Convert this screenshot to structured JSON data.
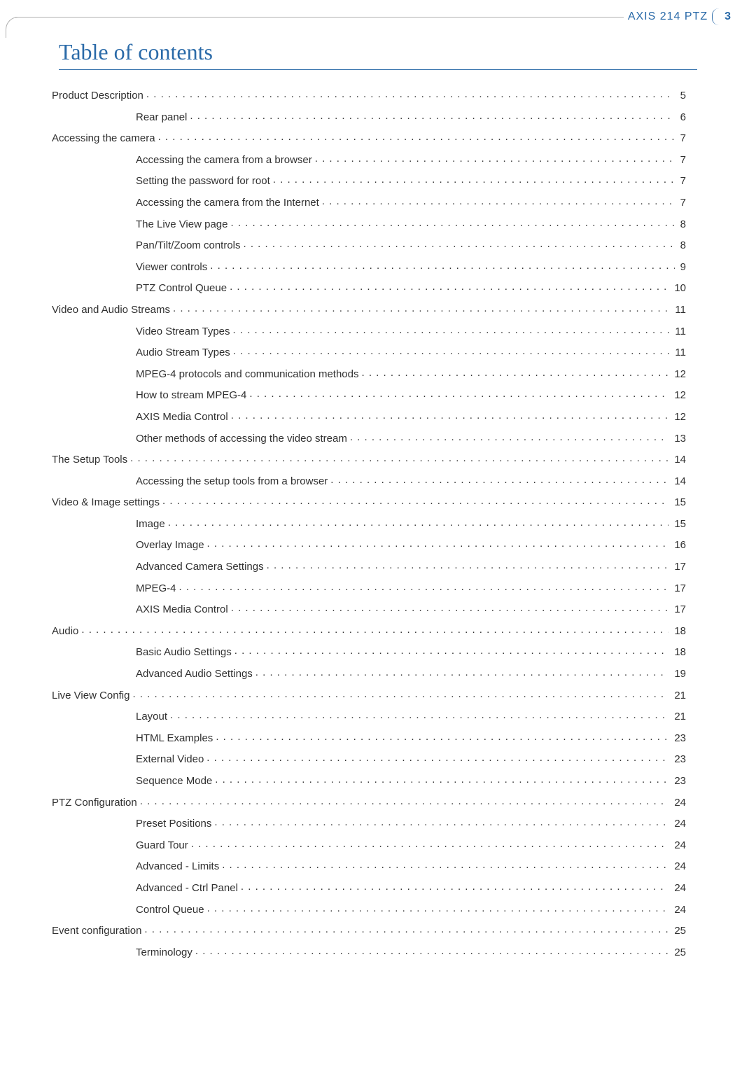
{
  "header": {
    "product": "AXIS 214 PTZ",
    "page_number": "3"
  },
  "title": "Table of contents",
  "colors": {
    "accent": "#2a6aa8",
    "text": "#303030",
    "rule": "#b0b0b0",
    "background": "#ffffff"
  },
  "typography": {
    "title_font": "Palatino Linotype, Book Antiqua, Georgia, serif",
    "title_size_pt": 24,
    "body_font": "Segoe UI, Helvetica Neue, Arial, sans-serif",
    "body_size_pt": 11
  },
  "toc": [
    {
      "level": 1,
      "label": "Product Description",
      "page": "5"
    },
    {
      "level": 2,
      "label": "Rear panel",
      "page": "6"
    },
    {
      "level": 1,
      "label": "Accessing the camera",
      "page": "7"
    },
    {
      "level": 2,
      "label": "Accessing the camera from a browser",
      "page": "7"
    },
    {
      "level": 2,
      "label": "Setting the password for root",
      "page": "7"
    },
    {
      "level": 2,
      "label": "Accessing the camera from the Internet",
      "page": "7"
    },
    {
      "level": 2,
      "label": "The Live View page",
      "page": "8"
    },
    {
      "level": 2,
      "label": "Pan/Tilt/Zoom controls",
      "page": "8"
    },
    {
      "level": 2,
      "label": "Viewer controls",
      "page": "9"
    },
    {
      "level": 2,
      "label": "PTZ Control Queue",
      "page": "10"
    },
    {
      "level": 1,
      "label": "Video and Audio Streams",
      "page": "11"
    },
    {
      "level": 2,
      "label": "Video Stream Types",
      "page": "11"
    },
    {
      "level": 2,
      "label": "Audio Stream Types",
      "page": "11"
    },
    {
      "level": 2,
      "label": "MPEG-4 protocols and communication methods",
      "page": "12"
    },
    {
      "level": 2,
      "label": "How to stream MPEG-4",
      "page": "12"
    },
    {
      "level": 2,
      "label": "AXIS Media Control",
      "page": "12"
    },
    {
      "level": 2,
      "label": "Other methods of accessing the video stream",
      "page": "13"
    },
    {
      "level": 1,
      "label": "The Setup Tools",
      "page": "14"
    },
    {
      "level": 2,
      "label": "Accessing the setup tools from a browser",
      "page": "14"
    },
    {
      "level": 1,
      "label": "Video & Image settings",
      "page": "15"
    },
    {
      "level": 2,
      "label": "Image",
      "page": "15"
    },
    {
      "level": 2,
      "label": "Overlay Image",
      "page": "16"
    },
    {
      "level": 2,
      "label": "Advanced Camera Settings",
      "page": "17"
    },
    {
      "level": 2,
      "label": "MPEG-4",
      "page": "17"
    },
    {
      "level": 2,
      "label": "AXIS Media Control",
      "page": "17"
    },
    {
      "level": 1,
      "label": "Audio",
      "page": "18"
    },
    {
      "level": 2,
      "label": "Basic Audio Settings",
      "page": "18"
    },
    {
      "level": 2,
      "label": "Advanced Audio Settings",
      "page": "19"
    },
    {
      "level": 1,
      "label": "Live View Config",
      "page": "21"
    },
    {
      "level": 2,
      "label": "Layout",
      "page": "21"
    },
    {
      "level": 2,
      "label": "HTML Examples",
      "page": "23"
    },
    {
      "level": 2,
      "label": "External Video",
      "page": "23"
    },
    {
      "level": 2,
      "label": "Sequence Mode",
      "page": "23"
    },
    {
      "level": 1,
      "label": "PTZ Configuration",
      "page": "24"
    },
    {
      "level": 2,
      "label": "Preset Positions",
      "page": "24"
    },
    {
      "level": 2,
      "label": "Guard Tour",
      "page": "24"
    },
    {
      "level": 2,
      "label": "Advanced - Limits",
      "page": "24"
    },
    {
      "level": 2,
      "label": "Advanced - Ctrl Panel",
      "page": "24"
    },
    {
      "level": 2,
      "label": "Control Queue",
      "page": "24"
    },
    {
      "level": 1,
      "label": "Event configuration",
      "page": "25"
    },
    {
      "level": 2,
      "label": "Terminology",
      "page": "25"
    }
  ]
}
